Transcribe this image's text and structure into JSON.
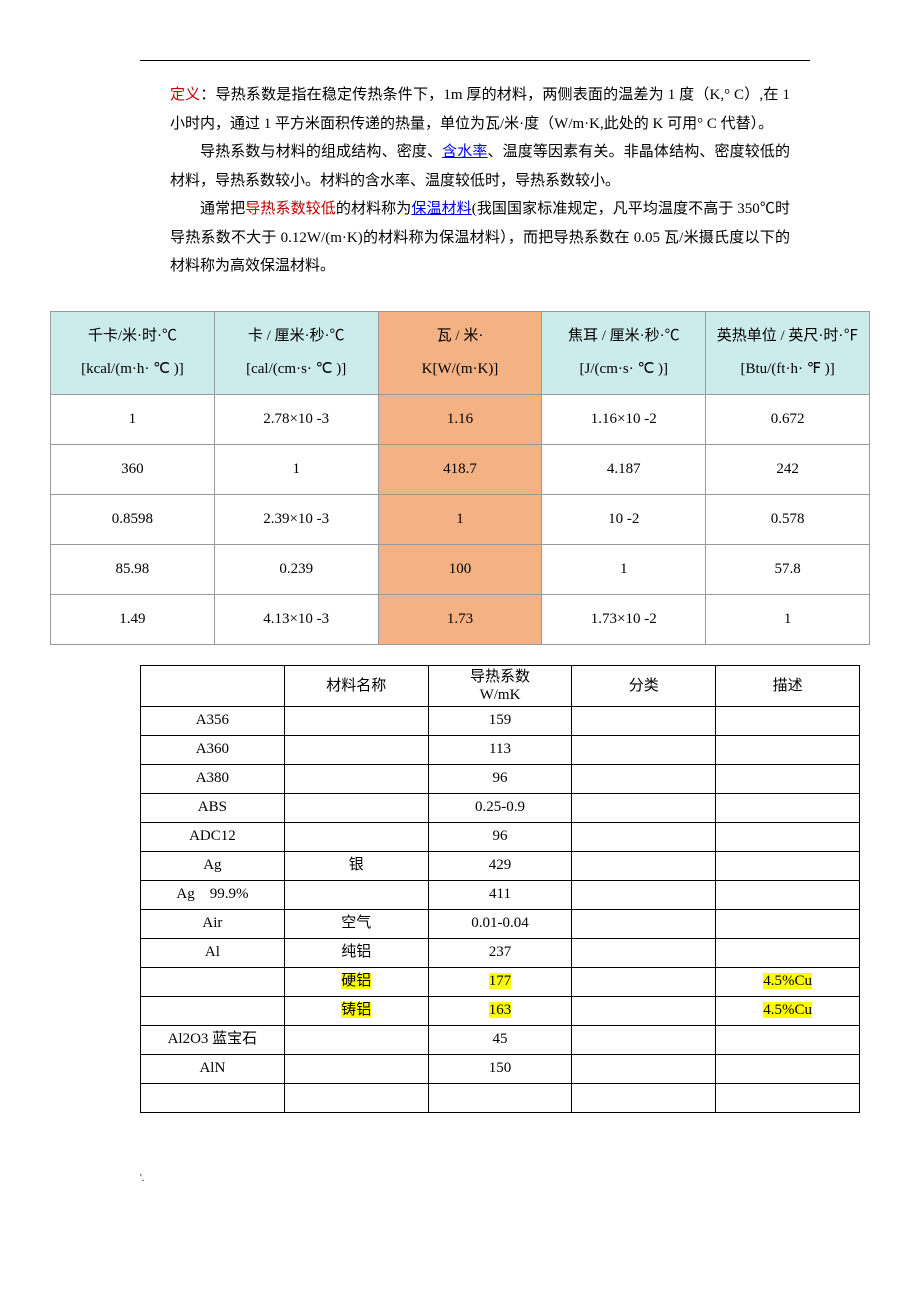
{
  "intro": {
    "def_label": "定义",
    "p1": "：导热系数是指在稳定传热条件下，1m 厚的材料，两侧表面的温差为 1 度（K,° C）,在 1 小时内，通过 1 平方米面积传递的热量，单位为瓦/米·度（W/m·K,此处的 K 可用° C 代替）。",
    "p2a": "导热系数与材料的组成结构、密度、",
    "link_water": "含水率",
    "p2b": "、温度等因素有关。非晶体结构、密度较低的材料，导热系数较小。材料的含水率、温度较低时，导热系数较小。",
    "p3a": "通常把",
    "red_low": "导热系数较低",
    "p3b": "的材料称为",
    "link_ins": "保温材料",
    "p3c": "(我国国家标准规定，凡平均温度不高于 350℃时导热系数不大于 0.12W/(m·K)的材料称为保温材料），而把导热系数在 0.05 瓦/米摄氏度以下的材料称为高效保温材料。"
  },
  "conv": {
    "headers": [
      "千卡/米·时·℃\n[kcal/(m·h· ℃ )]",
      "卡 / 厘米·秒·℃\n[cal/(cm·s· ℃ )]",
      "瓦 / 米·\nK[W/(m·K)]",
      "焦耳 / 厘米·秒·℃\n[J/(cm·s· ℃ )]",
      "英热单位 / 英尺·时·℉\n[Btu/(ft·h· ℉ )]"
    ],
    "rows": [
      [
        "1",
        "2.78×10 -3",
        "1.16",
        "1.16×10 -2",
        "0.672"
      ],
      [
        "360",
        "1",
        "418.7",
        "4.187",
        "242"
      ],
      [
        "0.8598",
        "2.39×10 -3",
        "1",
        "10 -2",
        "0.578"
      ],
      [
        "85.98",
        "0.239",
        "100",
        "1",
        "57.8"
      ],
      [
        "1.49",
        "4.13×10 -3",
        "1.73",
        "1.73×10 -2",
        "1"
      ]
    ],
    "header_bg": "#ccecec",
    "orange_bg": "#f4b183",
    "border": "#999999"
  },
  "mat": {
    "headers": [
      "",
      "材料名称",
      "导热系数\nW/mK",
      "分类",
      "描述"
    ],
    "rows": [
      {
        "c": [
          "A356",
          "",
          "159",
          "",
          ""
        ]
      },
      {
        "c": [
          "A360",
          "",
          "113",
          "",
          ""
        ]
      },
      {
        "c": [
          "A380",
          "",
          "96",
          "",
          ""
        ]
      },
      {
        "c": [
          "ABS",
          "",
          "0.25-0.9",
          "",
          ""
        ]
      },
      {
        "c": [
          "ADC12",
          "",
          "96",
          "",
          ""
        ]
      },
      {
        "c": [
          "Ag",
          "银",
          "429",
          "",
          ""
        ]
      },
      {
        "c": [
          "Ag　99.9%",
          "",
          "411",
          "",
          ""
        ]
      },
      {
        "c": [
          "Air",
          "空气",
          "0.01-0.04",
          "",
          ""
        ]
      },
      {
        "c": [
          "Al",
          "纯铝",
          "237",
          "",
          ""
        ]
      },
      {
        "c": [
          "",
          "硬铝",
          "177",
          "",
          "4.5%Cu"
        ],
        "hl": [
          1,
          2,
          4
        ]
      },
      {
        "c": [
          "",
          "铸铝",
          "163",
          "",
          "4.5%Cu"
        ],
        "hl": [
          1,
          2,
          4
        ]
      },
      {
        "c": [
          "Al2O3 蓝宝石",
          "",
          "45",
          "",
          ""
        ]
      },
      {
        "c": [
          "AlN",
          "",
          "150",
          "",
          ""
        ]
      },
      {
        "c": [
          "",
          "",
          "",
          "",
          ""
        ]
      }
    ]
  },
  "footer": "'."
}
